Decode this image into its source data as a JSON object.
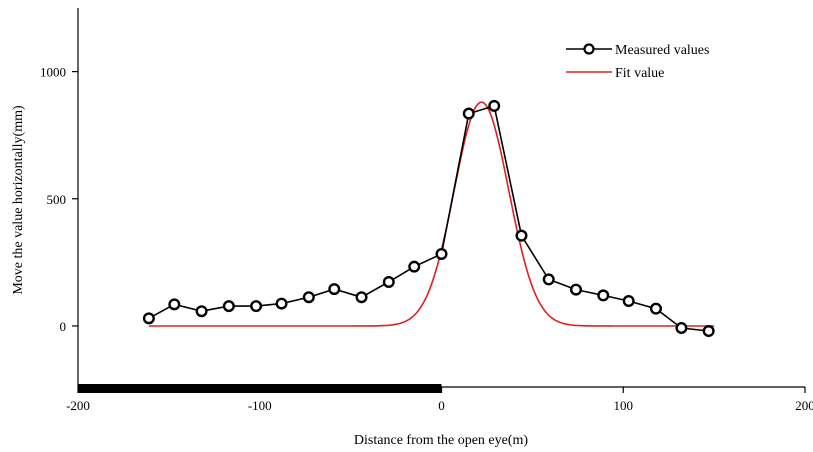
{
  "chart_data": {
    "type": "line",
    "xlabel": "Distance from the open eye(m)",
    "ylabel": "Move the value horizontally(mm)",
    "xlim": [
      -200,
      200
    ],
    "ylim": [
      -240,
      1250
    ],
    "xticks": [
      -200,
      -100,
      0,
      100,
      200
    ],
    "xtick_labels": [
      "-200",
      "-100",
      "0",
      "100",
      "200"
    ],
    "yticks": [
      0,
      500,
      1000
    ],
    "ytick_labels": [
      "0",
      "500",
      "1000"
    ],
    "grid": false,
    "legend": "top-right",
    "highlight_span": {
      "x": [
        -200,
        0
      ],
      "color": "#000000"
    },
    "series": [
      {
        "name": "Measured values",
        "style": "line-markers",
        "color": "#000000",
        "x": [
          -161,
          -147,
          -132,
          -117,
          -102,
          -88,
          -73,
          -59,
          -44,
          -29,
          -15,
          0,
          15,
          29,
          44,
          59,
          74,
          89,
          103,
          118,
          132,
          147
        ],
        "y": [
          30,
          85,
          58,
          78,
          78,
          88,
          113,
          145,
          113,
          173,
          233,
          283,
          835,
          865,
          355,
          183,
          143,
          120,
          98,
          68,
          -8,
          -20
        ]
      },
      {
        "name": "Fit value",
        "style": "line",
        "color": "#e02020",
        "model": "gaussian",
        "params": {
          "baseline": 0,
          "amplitude": 880,
          "center": 22,
          "sigma": 15
        },
        "x_range": [
          -161,
          150
        ]
      }
    ]
  }
}
